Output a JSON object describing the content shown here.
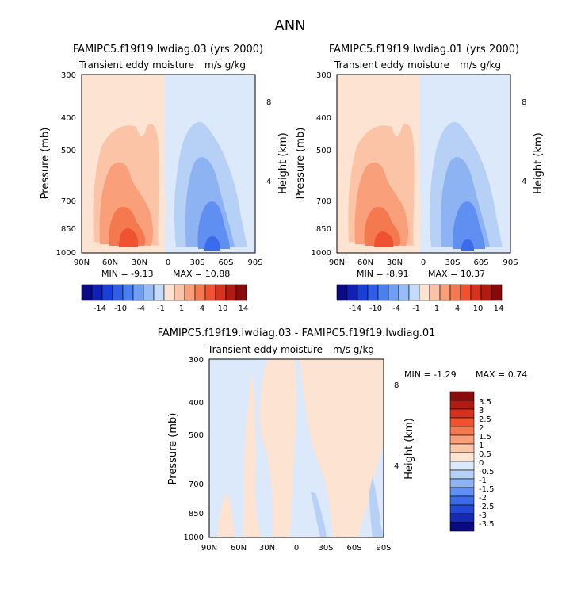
{
  "page": {
    "title": "ANN"
  },
  "chart_data": [
    {
      "type": "contour",
      "id": "p1",
      "title": "FAMIPC5.f19f19.lwdiag.03 (yrs 2000)",
      "subtitle_left": "Transient eddy moisture",
      "subtitle_right": "m/s g/kg",
      "ylabel": "Pressure (mb)",
      "ylabel_right": "Height (km)",
      "x_ticks": [
        "90N",
        "60N",
        "30N",
        "0",
        "30S",
        "60S",
        "90S"
      ],
      "y_ticks": [
        "300",
        "400",
        "500",
        "700",
        "850",
        "1000"
      ],
      "y_ticks_right": [
        "8",
        "4"
      ],
      "min_label": "MIN = -9.13",
      "max_label": "MAX = 10.88",
      "min": -9.13,
      "max": 10.88,
      "colorbar_labels": [
        "-14",
        "-10",
        "-4",
        "-1",
        "1",
        "4",
        "10",
        "14"
      ]
    },
    {
      "type": "contour",
      "id": "p2",
      "title": "FAMIPC5.f19f19.lwdiag.01 (yrs 2000)",
      "subtitle_left": "Transient eddy moisture",
      "subtitle_right": "m/s g/kg",
      "ylabel": "Pressure (mb)",
      "ylabel_right": "Height (km)",
      "x_ticks": [
        "90N",
        "60N",
        "30N",
        "0",
        "30S",
        "60S",
        "90S"
      ],
      "y_ticks": [
        "300",
        "400",
        "500",
        "700",
        "850",
        "1000"
      ],
      "y_ticks_right": [
        "8",
        "4"
      ],
      "min_label": "MIN = -8.91",
      "max_label": "MAX = 10.37",
      "min": -8.91,
      "max": 10.37,
      "colorbar_labels": [
        "-14",
        "-10",
        "-4",
        "-1",
        "1",
        "4",
        "10",
        "14"
      ]
    },
    {
      "type": "contour",
      "id": "p3",
      "title": "FAMIPC5.f19f19.lwdiag.03 - FAMIPC5.f19f19.lwdiag.01",
      "subtitle_left": "Transient eddy moisture",
      "subtitle_right": "m/s g/kg",
      "ylabel": "Pressure (mb)",
      "ylabel_right": "Height (km)",
      "x_ticks": [
        "90N",
        "60N",
        "30N",
        "0",
        "30S",
        "60S",
        "90S"
      ],
      "y_ticks": [
        "300",
        "400",
        "500",
        "700",
        "850",
        "1000"
      ],
      "y_ticks_right": [
        "8",
        "4"
      ],
      "min_label": "MIN = -1.29",
      "max_label": "MAX = 0.74",
      "min": -1.29,
      "max": 0.74,
      "colorbar_labels": [
        "3.5",
        "3",
        "2.5",
        "2",
        "1.5",
        "1",
        "0.5",
        "0",
        "-0.5",
        "-1",
        "-1.5",
        "-2",
        "-2.5",
        "-3",
        "-3.5"
      ]
    }
  ],
  "colors": {
    "colorbar_16": [
      "#0a0a82",
      "#0f1fb8",
      "#1a3fd9",
      "#2f5fe8",
      "#4a7ff0",
      "#6f9ff4",
      "#98bdf6",
      "#c4dcf9",
      "#fde4d2",
      "#fcc4a7",
      "#f9a07a",
      "#f5794f",
      "#ef5230",
      "#d8321e",
      "#b01b12",
      "#870909"
    ],
    "colorbar_16_diff": [
      "#8b0a0a",
      "#b01b12",
      "#d8321e",
      "#ef5230",
      "#f5794f",
      "#f9a07a",
      "#fcc4a7",
      "#fde4d2",
      "#dce9fa",
      "#b7d0f6",
      "#8db3f3",
      "#5f8ff0",
      "#3a6bea",
      "#2447d6",
      "#1629b2",
      "#0a0a82"
    ]
  }
}
